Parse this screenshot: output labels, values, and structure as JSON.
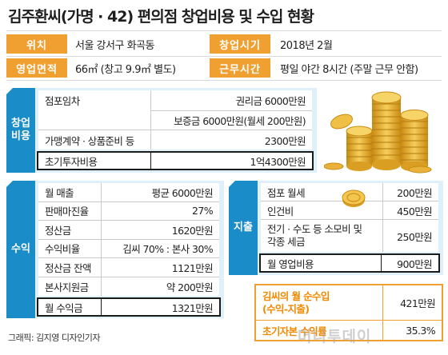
{
  "title": "김주환씨(가명 · 42) 편의점 창업비용 및 수입 현황",
  "info": [
    {
      "label": "위치",
      "value": "서울 강서구 화곡동"
    },
    {
      "label": "창업시기",
      "value": "2018년 2월"
    },
    {
      "label": "영업면적",
      "value": "66㎡ (창고 9.9㎡ 별도)"
    },
    {
      "label": "근무시간",
      "value": "평일 야간 8시간 (주말 근무 안함)"
    }
  ],
  "startup": {
    "tab": "창업\n비용",
    "rows": [
      {
        "label": "점포임차",
        "value1": "권리금 6000만원",
        "value2": "보증금 6000만원(월세 200만원)"
      },
      {
        "label": "가맹계약 · 상품준비 등",
        "value": "2300만원"
      }
    ],
    "total": {
      "label": "초기투자비용",
      "value": "1억4300만원"
    }
  },
  "income": {
    "tab": "수익",
    "rows": [
      {
        "label": "월 매출",
        "value": "평균 6000만원"
      },
      {
        "label": "판매마진율",
        "value": "27%"
      },
      {
        "label": "정산금",
        "value": "1620만원"
      },
      {
        "label": "수익비율",
        "value": "김씨 70% : 본사 30%"
      },
      {
        "label": "정산금 잔액",
        "value": "1121만원"
      },
      {
        "label": "본사지원금",
        "value": "약 200만원"
      }
    ],
    "total": {
      "label": "월 수익금",
      "value": "1321만원"
    }
  },
  "expense": {
    "tab": "지출",
    "rows": [
      {
        "label": "점포 월세",
        "value": "200만원"
      },
      {
        "label": "인건비",
        "value": "450만원"
      },
      {
        "label": "전기 · 수도 등 소모비 및\n각종 세금",
        "value": "250만원"
      }
    ],
    "total": {
      "label": "월 영업비용",
      "value": "900만원"
    }
  },
  "net": [
    {
      "label": "김씨의 월 순수입\n(수익-지출)",
      "value": "421만원"
    },
    {
      "label": "초기자본 수익률",
      "value": "35.3%"
    }
  ],
  "credit": "그래픽: 김지영 디자인기자",
  "watermark": "머니투데이",
  "colors": {
    "accent_orange": "#f0a030",
    "section_blue": "#1a8cc8",
    "box_bg": "#dff0fb",
    "coin_gold": "#e8b23a"
  },
  "icons": [
    "coin-stack-icon",
    "coin-icon"
  ]
}
